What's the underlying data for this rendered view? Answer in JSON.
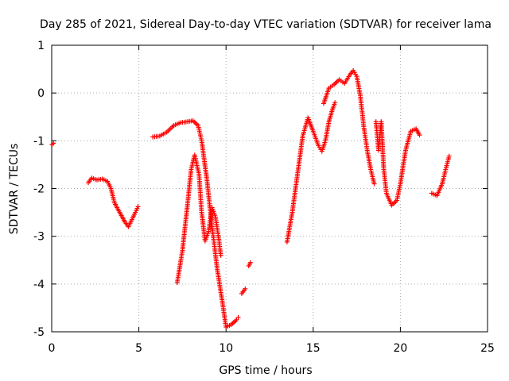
{
  "chart_data": {
    "type": "scatter",
    "title": "Day 285 of 2021, Sidereal Day-to-day VTEC variation (SDTVAR) for receiver lama",
    "xlabel": "GPS time / hours",
    "ylabel": "SDTVAR / TECUs",
    "xlim": [
      0,
      25
    ],
    "ylim": [
      -5,
      1
    ],
    "xticks": [
      "0",
      "5",
      "10",
      "15",
      "20",
      "25"
    ],
    "yticks": [
      "1",
      "0",
      "-1",
      "-2",
      "-3",
      "-4",
      "-5"
    ],
    "grid": true,
    "marker": "+",
    "color": "#ff0000",
    "series": [
      {
        "segments": [
          [
            [
              0.02,
              -1.08
            ],
            [
              0.1,
              -1.05
            ]
          ],
          [
            [
              2.1,
              -1.88
            ],
            [
              2.3,
              -1.78
            ],
            [
              2.6,
              -1.82
            ],
            [
              2.9,
              -1.8
            ],
            [
              3.2,
              -1.85
            ],
            [
              3.4,
              -2.0
            ],
            [
              3.6,
              -2.3
            ],
            [
              3.9,
              -2.5
            ],
            [
              4.2,
              -2.7
            ],
            [
              4.4,
              -2.8
            ],
            [
              4.6,
              -2.65
            ],
            [
              4.8,
              -2.5
            ],
            [
              4.95,
              -2.38
            ]
          ],
          [
            [
              5.8,
              -0.92
            ],
            [
              6.2,
              -0.9
            ],
            [
              6.6,
              -0.82
            ],
            [
              7.0,
              -0.68
            ],
            [
              7.4,
              -0.62
            ],
            [
              7.8,
              -0.6
            ],
            [
              8.1,
              -0.58
            ],
            [
              8.4,
              -0.68
            ],
            [
              8.6,
              -1.0
            ],
            [
              8.9,
              -1.8
            ],
            [
              9.2,
              -2.8
            ],
            [
              9.5,
              -3.7
            ],
            [
              9.8,
              -4.4
            ],
            [
              10.0,
              -4.9
            ],
            [
              10.3,
              -4.85
            ],
            [
              10.6,
              -4.75
            ],
            [
              10.7,
              -4.7
            ]
          ],
          [
            [
              7.2,
              -3.97
            ],
            [
              7.5,
              -3.3
            ],
            [
              7.8,
              -2.3
            ],
            [
              8.0,
              -1.6
            ],
            [
              8.2,
              -1.3
            ],
            [
              8.45,
              -1.7
            ],
            [
              8.6,
              -2.5
            ],
            [
              8.8,
              -3.1
            ],
            [
              9.0,
              -2.9
            ],
            [
              9.2,
              -2.4
            ],
            [
              9.4,
              -2.6
            ],
            [
              9.6,
              -3.1
            ],
            [
              9.7,
              -3.4
            ]
          ],
          [
            [
              10.9,
              -4.2
            ],
            [
              11.1,
              -4.1
            ]
          ],
          [
            [
              11.3,
              -3.62
            ],
            [
              11.4,
              -3.55
            ]
          ],
          [
            [
              13.5,
              -3.12
            ],
            [
              13.8,
              -2.5
            ],
            [
              14.1,
              -1.7
            ],
            [
              14.4,
              -0.9
            ],
            [
              14.7,
              -0.52
            ],
            [
              15.0,
              -0.8
            ],
            [
              15.3,
              -1.1
            ],
            [
              15.5,
              -1.22
            ],
            [
              15.7,
              -1.0
            ],
            [
              15.9,
              -0.6
            ],
            [
              16.1,
              -0.35
            ],
            [
              16.25,
              -0.2
            ]
          ],
          [
            [
              15.6,
              -0.22
            ],
            [
              15.9,
              0.1
            ],
            [
              16.2,
              0.18
            ],
            [
              16.5,
              0.28
            ],
            [
              16.8,
              0.2
            ],
            [
              17.1,
              0.38
            ],
            [
              17.3,
              0.47
            ],
            [
              17.5,
              0.35
            ],
            [
              17.7,
              -0.05
            ],
            [
              17.9,
              -0.7
            ],
            [
              18.1,
              -1.2
            ],
            [
              18.3,
              -1.6
            ],
            [
              18.5,
              -1.9
            ]
          ],
          [
            [
              18.6,
              -0.6
            ],
            [
              18.75,
              -1.2
            ],
            [
              18.9,
              -0.6
            ],
            [
              19.05,
              -1.6
            ],
            [
              19.2,
              -2.1
            ],
            [
              19.5,
              -2.35
            ],
            [
              19.8,
              -2.25
            ],
            [
              20.0,
              -1.9
            ],
            [
              20.3,
              -1.2
            ],
            [
              20.6,
              -0.8
            ],
            [
              20.9,
              -0.75
            ],
            [
              21.1,
              -0.88
            ]
          ],
          [
            [
              21.8,
              -2.1
            ],
            [
              22.1,
              -2.15
            ],
            [
              22.4,
              -1.9
            ],
            [
              22.6,
              -1.6
            ],
            [
              22.8,
              -1.32
            ]
          ]
        ]
      }
    ]
  }
}
